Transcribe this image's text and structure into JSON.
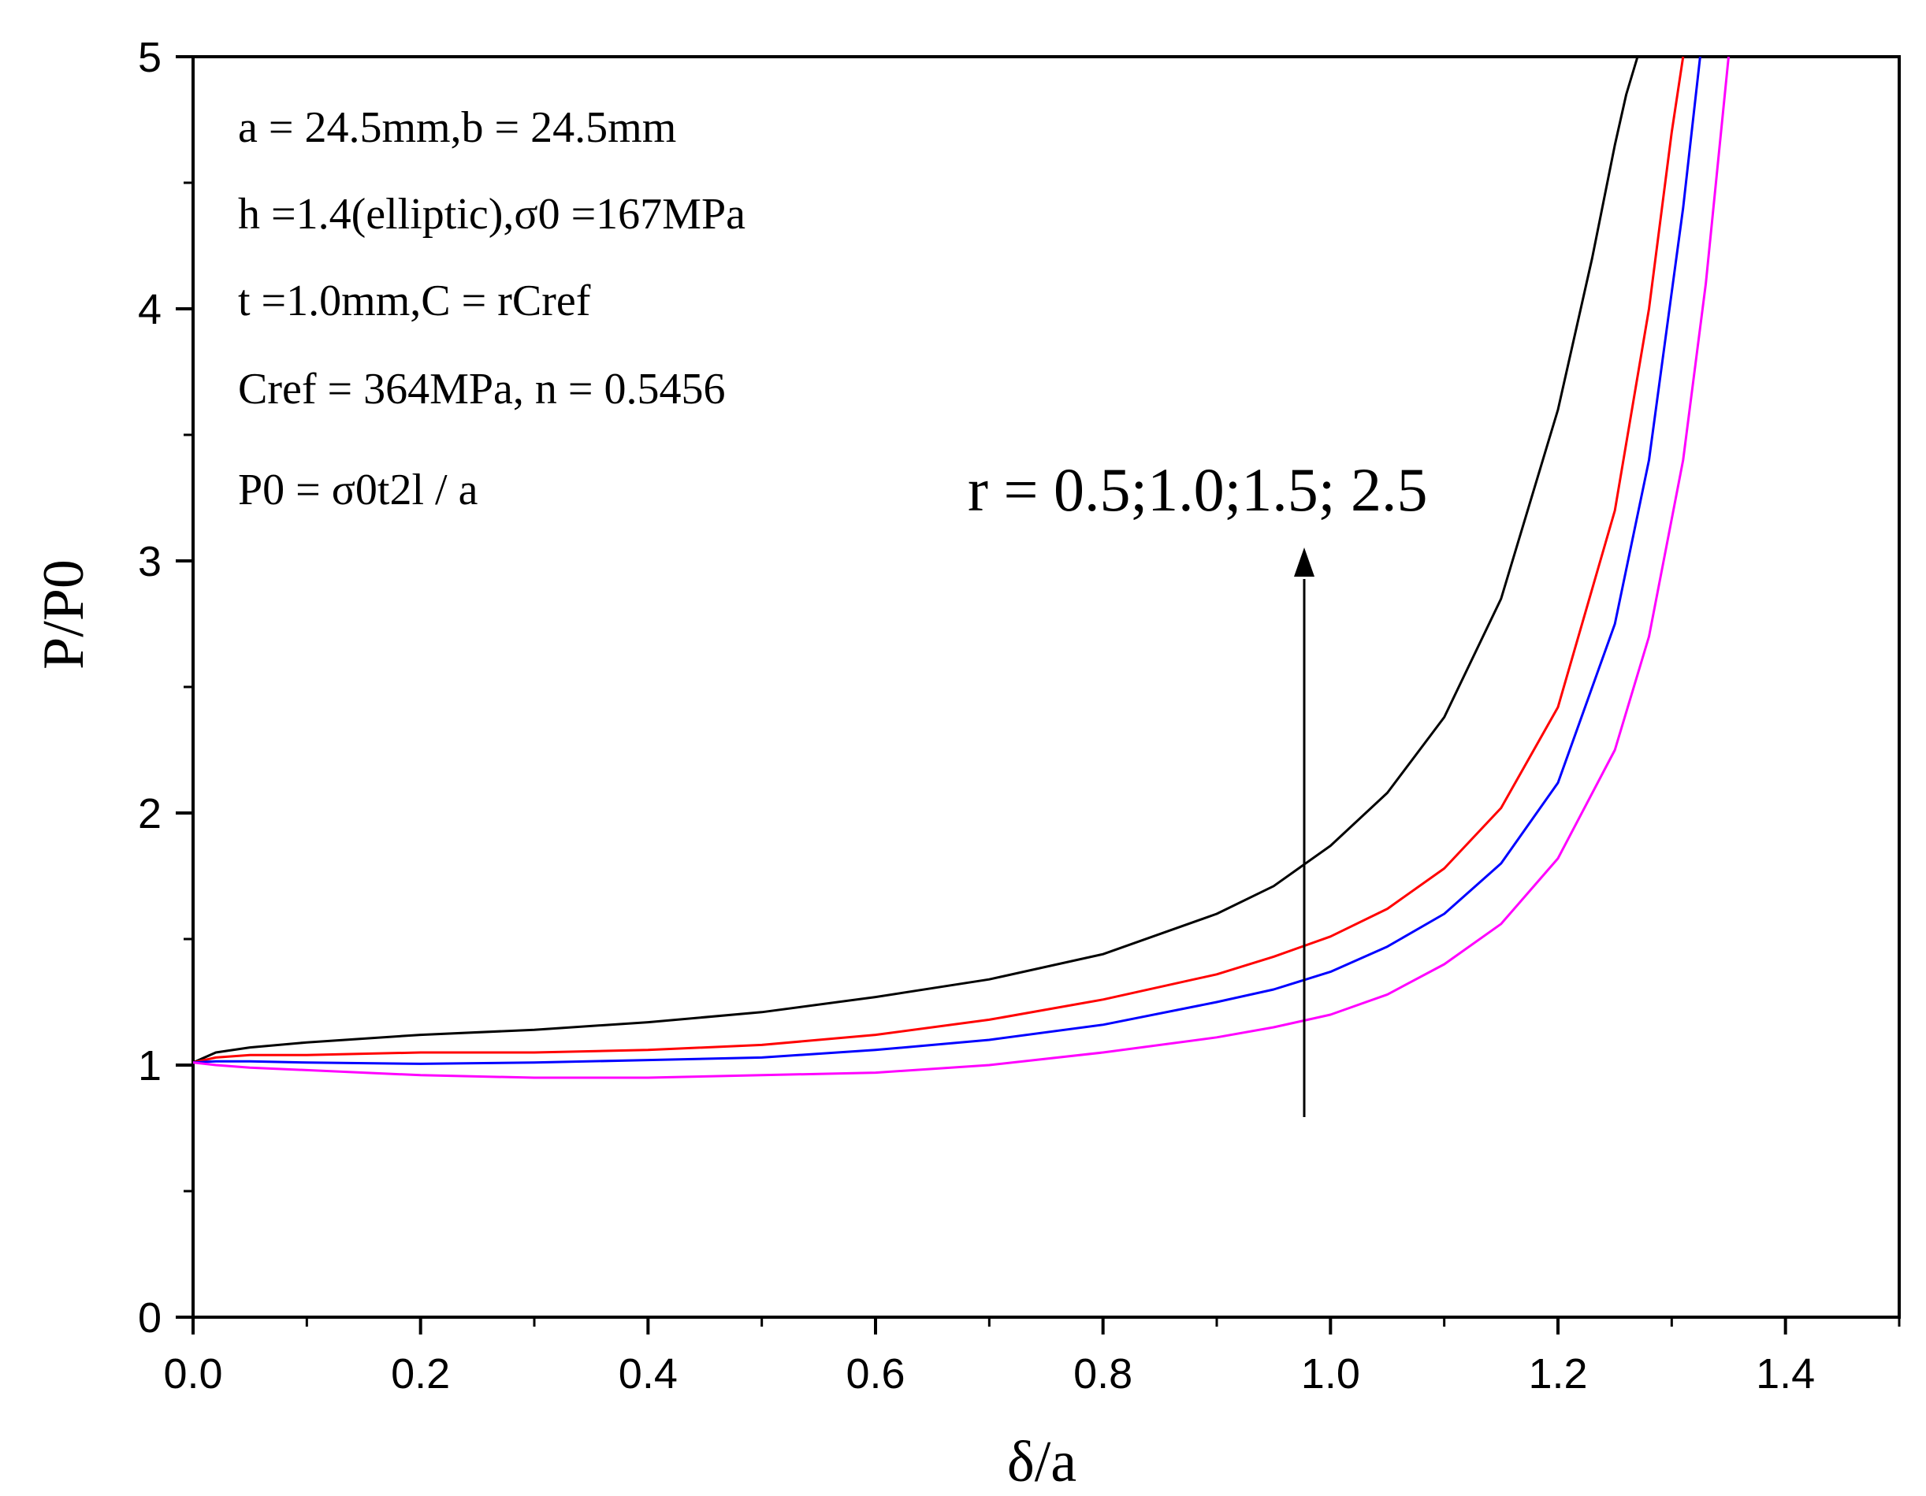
{
  "chart_data": {
    "type": "line",
    "xlabel": "δ/a",
    "ylabel": "P/P0",
    "xlim": [
      0,
      1.5
    ],
    "ylim": [
      0,
      5
    ],
    "x_ticks": [
      "0.0",
      "0.2",
      "0.4",
      "0.6",
      "0.8",
      "1.0",
      "1.2",
      "1.4"
    ],
    "y_ticks": [
      "0",
      "1",
      "2",
      "3",
      "4",
      "5"
    ],
    "grid": false,
    "legend": "none",
    "annotations": [
      "a = 24.5mm,b = 24.5mm",
      "h =1.4(elliptic),σ0 =167MPa",
      "t =1.0mm,C = rCref",
      "Cref = 364MPa, n = 0.5456",
      "P0 = σ0t2l / a"
    ],
    "arrow_label": "r = 0.5;1.0;1.5; 2.5",
    "series": [
      {
        "color": "#000000",
        "x": [
          0,
          0.02,
          0.05,
          0.1,
          0.2,
          0.3,
          0.4,
          0.5,
          0.6,
          0.7,
          0.8,
          0.9,
          0.95,
          1.0,
          1.05,
          1.1,
          1.15,
          1.2,
          1.23,
          1.25,
          1.26,
          1.27
        ],
        "y": [
          1.01,
          1.05,
          1.07,
          1.09,
          1.12,
          1.14,
          1.17,
          1.21,
          1.27,
          1.34,
          1.44,
          1.6,
          1.71,
          1.87,
          2.08,
          2.38,
          2.85,
          3.6,
          4.2,
          4.65,
          4.85,
          5.0
        ]
      },
      {
        "color": "#ff0000",
        "x": [
          0,
          0.02,
          0.05,
          0.1,
          0.2,
          0.3,
          0.4,
          0.5,
          0.6,
          0.7,
          0.8,
          0.9,
          0.95,
          1.0,
          1.05,
          1.1,
          1.15,
          1.2,
          1.25,
          1.28,
          1.3,
          1.31
        ],
        "y": [
          1.01,
          1.03,
          1.04,
          1.04,
          1.05,
          1.05,
          1.06,
          1.08,
          1.12,
          1.18,
          1.26,
          1.36,
          1.43,
          1.51,
          1.62,
          1.78,
          2.02,
          2.42,
          3.2,
          4.0,
          4.7,
          5.0
        ]
      },
      {
        "color": "#0000ff",
        "x": [
          0,
          0.02,
          0.05,
          0.1,
          0.2,
          0.3,
          0.4,
          0.5,
          0.6,
          0.7,
          0.8,
          0.9,
          0.95,
          1.0,
          1.05,
          1.1,
          1.15,
          1.2,
          1.25,
          1.28,
          1.31,
          1.325
        ],
        "y": [
          1.01,
          1.015,
          1.015,
          1.01,
          1.005,
          1.01,
          1.02,
          1.03,
          1.06,
          1.1,
          1.16,
          1.25,
          1.3,
          1.37,
          1.47,
          1.6,
          1.8,
          2.12,
          2.75,
          3.4,
          4.4,
          5.0
        ]
      },
      {
        "color": "#ff00ff",
        "x": [
          0,
          0.02,
          0.05,
          0.1,
          0.2,
          0.3,
          0.4,
          0.5,
          0.6,
          0.7,
          0.8,
          0.9,
          0.95,
          1.0,
          1.05,
          1.1,
          1.15,
          1.2,
          1.25,
          1.28,
          1.31,
          1.33,
          1.35
        ],
        "y": [
          1.01,
          1.0,
          0.99,
          0.98,
          0.96,
          0.95,
          0.95,
          0.96,
          0.97,
          1.0,
          1.05,
          1.11,
          1.15,
          1.2,
          1.28,
          1.4,
          1.56,
          1.82,
          2.25,
          2.7,
          3.4,
          4.1,
          5.0
        ]
      }
    ]
  }
}
